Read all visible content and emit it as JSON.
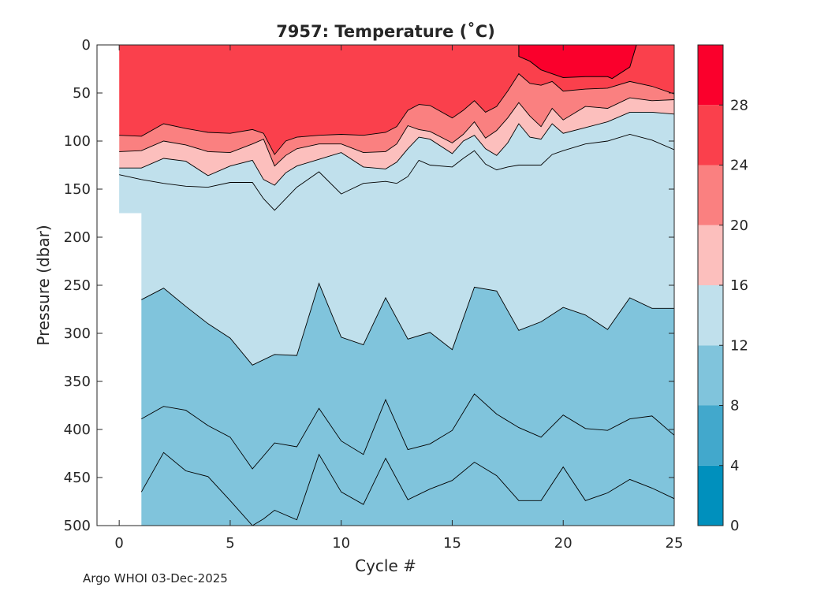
{
  "chart_data": {
    "type": "filled-contour",
    "title": "7957:  Temperature (˚C)",
    "xlabel": "Cycle #",
    "ylabel": "Pressure (dbar)",
    "xlim": [
      -1,
      25
    ],
    "ylim": [
      0,
      500
    ],
    "y_reversed": true,
    "data_x_range": [
      0,
      25
    ],
    "x_ticks": [
      0,
      5,
      10,
      15,
      20,
      25
    ],
    "y_ticks": [
      0,
      50,
      100,
      150,
      200,
      250,
      300,
      350,
      400,
      450,
      500
    ],
    "colorbar": {
      "limits": [
        0,
        32
      ],
      "levels": [
        0,
        4,
        8,
        12,
        16,
        20,
        24,
        28,
        32
      ],
      "tick_labels": [
        "0",
        "4",
        "8",
        "12",
        "16",
        "20",
        "24",
        "28"
      ],
      "colors": [
        "#0090bd",
        "#42a8cc",
        "#80c4dc",
        "#c0e0ec",
        "#fcbfbd",
        "#fa8080",
        "#fa404c",
        "#fa002c"
      ]
    },
    "missing_data_depth": [
      {
        "cycle": 0,
        "max_pressure": 175
      }
    ],
    "band_colors": {
      "above_28": "#fa002c",
      "24_28": "#fa404c",
      "20_24": "#fa8080",
      "16_20": "#fcbfbd",
      "12_16": "#c0e0ec",
      "8_12": "#80c4dc"
    },
    "isotherms": [
      {
        "level": 28,
        "closed": true,
        "cycles": [
          18,
          18,
          18.5,
          19,
          20,
          21,
          22,
          22.2,
          23,
          23.3,
          22.5,
          18
        ],
        "pressure": [
          0,
          12,
          17,
          26,
          34,
          33,
          33,
          35,
          23,
          0,
          0,
          0
        ]
      },
      {
        "level": 24,
        "cycles": [
          0,
          1,
          2,
          3,
          4,
          5,
          6,
          6.5,
          7,
          7.5,
          8,
          9,
          10,
          11,
          12,
          12.5,
          13,
          13.5,
          14,
          15,
          15.5,
          16,
          16.5,
          17,
          17.5,
          18,
          18.5,
          19,
          19.5,
          20,
          21,
          22,
          23,
          24,
          25
        ],
        "pressure": [
          94,
          95,
          82,
          87,
          91,
          92,
          88,
          92,
          114,
          100,
          96,
          94,
          93,
          94,
          91,
          85,
          68,
          62,
          63,
          76,
          68,
          58,
          70,
          64,
          48,
          30,
          40,
          42,
          38,
          48,
          46,
          45,
          38,
          43,
          51
        ]
      },
      {
        "level": 20,
        "cycles": [
          0,
          1,
          2,
          3,
          4,
          5,
          6,
          6.5,
          7,
          7.5,
          8,
          9,
          10,
          11,
          12,
          12.5,
          13,
          13.5,
          14,
          15,
          15.5,
          16,
          16.5,
          17,
          17.5,
          18,
          18.5,
          19,
          19.5,
          20,
          21,
          22,
          23,
          24,
          25
        ],
        "pressure": [
          111,
          110,
          100,
          104,
          111,
          112,
          103,
          98,
          126,
          115,
          108,
          103,
          103,
          112,
          111,
          103,
          84,
          88,
          90,
          102,
          93,
          80,
          97,
          89,
          76,
          60,
          74,
          85,
          66,
          78,
          64,
          66,
          55,
          58,
          57
        ]
      },
      {
        "level": 16,
        "cycles": [
          0,
          1,
          2,
          3,
          4,
          5,
          6,
          6.5,
          7,
          7.5,
          8,
          9,
          10,
          11,
          12,
          12.5,
          13,
          13.5,
          14,
          15,
          15.5,
          16,
          16.5,
          17,
          17.5,
          18,
          18.5,
          19,
          19.5,
          20,
          21,
          22,
          23,
          24,
          25
        ],
        "pressure": [
          128,
          128,
          118,
          121,
          136,
          126,
          120,
          140,
          146,
          133,
          126,
          119,
          112,
          127,
          129,
          122,
          108,
          96,
          98,
          113,
          100,
          94,
          108,
          115,
          102,
          82,
          96,
          98,
          82,
          92,
          86,
          80,
          70,
          70,
          72
        ]
      },
      {
        "level": 12,
        "cycles": [
          0,
          1,
          2,
          3,
          4,
          5,
          6,
          6.5,
          7,
          7.5,
          8,
          9,
          10,
          11,
          12,
          12.5,
          13,
          13.5,
          14,
          15,
          15.5,
          16,
          16.5,
          17,
          17.5,
          18,
          18.5,
          19,
          19.5,
          20,
          21,
          22,
          23,
          24,
          25
        ],
        "pressure": [
          135,
          140,
          144,
          147,
          148,
          143,
          143,
          160,
          172,
          160,
          148,
          132,
          155,
          144,
          142,
          144,
          137,
          120,
          125,
          127,
          118,
          110,
          124,
          130,
          127,
          125,
          125,
          125,
          114,
          110,
          103,
          100,
          93,
          99,
          109
        ]
      },
      {
        "level": 8,
        "cycles": [
          1,
          2,
          3,
          4,
          5,
          6,
          7,
          8,
          9,
          10,
          11,
          12,
          13,
          14,
          15,
          16,
          17,
          18,
          19,
          20,
          21,
          22,
          23,
          24,
          25
        ],
        "pressure": [
          265,
          253,
          272,
          290,
          305,
          333,
          322,
          323,
          248,
          304,
          312,
          263,
          306,
          299,
          317,
          252,
          256,
          297,
          288,
          273,
          281,
          296,
          263,
          274,
          274
        ]
      },
      {
        "level": 8,
        "cycles": [
          1,
          2,
          3,
          4,
          5,
          6,
          7,
          8,
          9,
          10,
          11,
          12,
          13,
          14,
          15,
          16,
          17,
          18,
          19,
          20,
          21,
          22,
          23,
          24,
          25
        ],
        "pressure": [
          389,
          376,
          380,
          396,
          408,
          441,
          414,
          418,
          378,
          412,
          426,
          369,
          421,
          415,
          401,
          363,
          384,
          398,
          408,
          385,
          399,
          401,
          389,
          386,
          406
        ]
      },
      {
        "level": 8,
        "cycles": [
          1,
          2,
          3,
          4,
          5,
          6,
          6.5,
          7,
          8,
          9,
          10,
          11,
          12,
          13,
          14,
          15,
          16,
          17,
          18,
          19,
          20,
          21,
          22,
          23,
          24,
          25
        ],
        "pressure": [
          465,
          424,
          443,
          449,
          474,
          500,
          493,
          484,
          494,
          426,
          465,
          478,
          430,
          473,
          462,
          453,
          434,
          448,
          474,
          474,
          439,
          474,
          466,
          452,
          461,
          472
        ]
      }
    ]
  },
  "footer": {
    "credit": "Argo WHOI 03-Dec-2025"
  }
}
